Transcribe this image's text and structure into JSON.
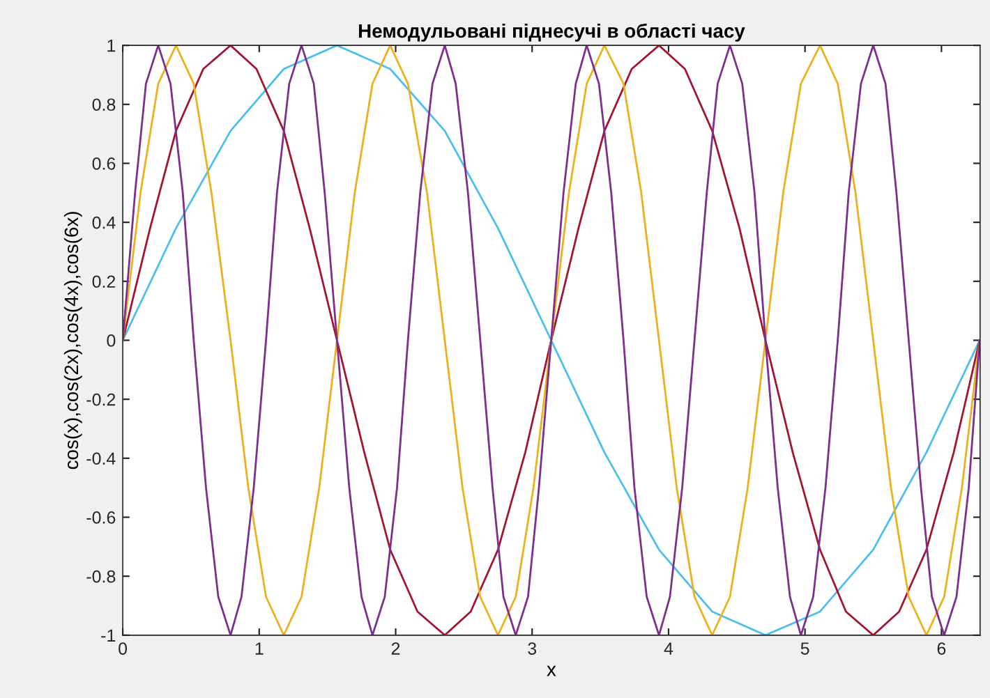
{
  "chart_data": {
    "type": "line",
    "title": "Немодульовані піднесучі в області часу",
    "xlabel": "x",
    "ylabel": "cos(x),cos(2x),cos(4x),cos(6x)",
    "xlim": [
      0,
      6.2832
    ],
    "ylim": [
      -1,
      1
    ],
    "xticks": [
      0,
      1,
      2,
      3,
      4,
      5,
      6
    ],
    "yticks": [
      -1,
      -0.8,
      -0.6,
      -0.4,
      -0.2,
      0,
      0.2,
      0.4,
      0.6,
      0.8,
      1
    ],
    "grid": false,
    "legend": false,
    "series": [
      {
        "color": "#4dbeee",
        "x": [
          0,
          0.39,
          0.79,
          1.18,
          1.57,
          1.96,
          2.36,
          2.75,
          3.14,
          3.53,
          3.93,
          4.32,
          4.71,
          5.11,
          5.5,
          5.89,
          6.28
        ],
        "values": [
          0,
          0.38,
          0.71,
          0.92,
          1,
          0.92,
          0.71,
          0.38,
          0,
          -0.38,
          -0.71,
          -0.92,
          -1,
          -0.92,
          -0.71,
          -0.38,
          0
        ]
      },
      {
        "color": "#a2142f",
        "x": [
          0,
          0.2,
          0.39,
          0.59,
          0.79,
          0.98,
          1.18,
          1.37,
          1.57,
          1.77,
          1.96,
          2.16,
          2.36,
          2.55,
          2.75,
          2.95,
          3.14,
          3.34,
          3.53,
          3.73,
          3.93,
          4.12,
          4.32,
          4.52,
          4.71,
          4.91,
          5.11,
          5.3,
          5.5,
          5.69,
          5.89,
          6.09,
          6.28
        ],
        "values": [
          0,
          0.38,
          0.71,
          0.92,
          1,
          0.92,
          0.71,
          0.38,
          0,
          -0.38,
          -0.71,
          -0.92,
          -1,
          -0.92,
          -0.71,
          -0.38,
          0,
          0.38,
          0.71,
          0.92,
          1,
          0.92,
          0.71,
          0.38,
          0,
          -0.38,
          -0.71,
          -0.92,
          -1,
          -0.92,
          -0.71,
          -0.38,
          0
        ]
      },
      {
        "color": "#edb120",
        "x": [
          0,
          0.13,
          0.26,
          0.39,
          0.52,
          0.65,
          0.79,
          0.92,
          1.05,
          1.18,
          1.31,
          1.44,
          1.57,
          1.7,
          1.83,
          1.96,
          2.09,
          2.23,
          2.36,
          2.49,
          2.62,
          2.75,
          2.88,
          3.01,
          3.14,
          3.27,
          3.4,
          3.53,
          3.67,
          3.8,
          3.93,
          4.06,
          4.19,
          4.32,
          4.45,
          4.58,
          4.71,
          4.84,
          4.97,
          5.11,
          5.24,
          5.37,
          5.5,
          5.63,
          5.76,
          5.89,
          6.02,
          6.15,
          6.28
        ],
        "values": [
          0,
          0.5,
          0.87,
          1,
          0.87,
          0.5,
          0,
          -0.5,
          -0.87,
          -1,
          -0.87,
          -0.5,
          0,
          0.5,
          0.87,
          1,
          0.87,
          0.5,
          0,
          -0.5,
          -0.87,
          -1,
          -0.87,
          -0.5,
          0,
          0.5,
          0.87,
          1,
          0.87,
          0.5,
          0,
          -0.5,
          -0.87,
          -1,
          -0.87,
          -0.5,
          0,
          0.5,
          0.87,
          1,
          0.87,
          0.5,
          0,
          -0.5,
          -0.87,
          -1,
          -0.87,
          -0.5,
          0
        ]
      },
      {
        "color": "#7e2f8e",
        "x": [
          0,
          0.09,
          0.17,
          0.26,
          0.35,
          0.44,
          0.52,
          0.61,
          0.7,
          0.79,
          0.87,
          0.96,
          1.05,
          1.13,
          1.22,
          1.31,
          1.4,
          1.48,
          1.57,
          1.66,
          1.75,
          1.83,
          1.92,
          2.01,
          2.09,
          2.18,
          2.27,
          2.36,
          2.44,
          2.53,
          2.62,
          2.71,
          2.79,
          2.88,
          2.97,
          3.05,
          3.14,
          3.23,
          3.32,
          3.4,
          3.49,
          3.58,
          3.67,
          3.75,
          3.84,
          3.93,
          4.01,
          4.1,
          4.19,
          4.28,
          4.36,
          4.45,
          4.54,
          4.63,
          4.71,
          4.8,
          4.89,
          4.97,
          5.06,
          5.15,
          5.24,
          5.32,
          5.41,
          5.5,
          5.59,
          5.67,
          5.76,
          5.85,
          5.93,
          6.02,
          6.11,
          6.2,
          6.28
        ],
        "values": [
          0,
          0.5,
          0.87,
          1,
          0.87,
          0.5,
          0,
          -0.5,
          -0.87,
          -1,
          -0.87,
          -0.5,
          0,
          0.5,
          0.87,
          1,
          0.87,
          0.5,
          0,
          -0.5,
          -0.87,
          -1,
          -0.87,
          -0.5,
          0,
          0.5,
          0.87,
          1,
          0.87,
          0.5,
          0,
          -0.5,
          -0.87,
          -1,
          -0.87,
          -0.5,
          0,
          0.5,
          0.87,
          1,
          0.87,
          0.5,
          0,
          -0.5,
          -0.87,
          -1,
          -0.87,
          -0.5,
          0,
          0.5,
          0.87,
          1,
          0.87,
          0.5,
          0,
          -0.5,
          -0.87,
          -1,
          -0.87,
          -0.5,
          0,
          0.5,
          0.87,
          1,
          0.87,
          0.5,
          0,
          -0.5,
          -0.87,
          -1,
          -0.87,
          -0.5,
          0
        ]
      }
    ]
  }
}
